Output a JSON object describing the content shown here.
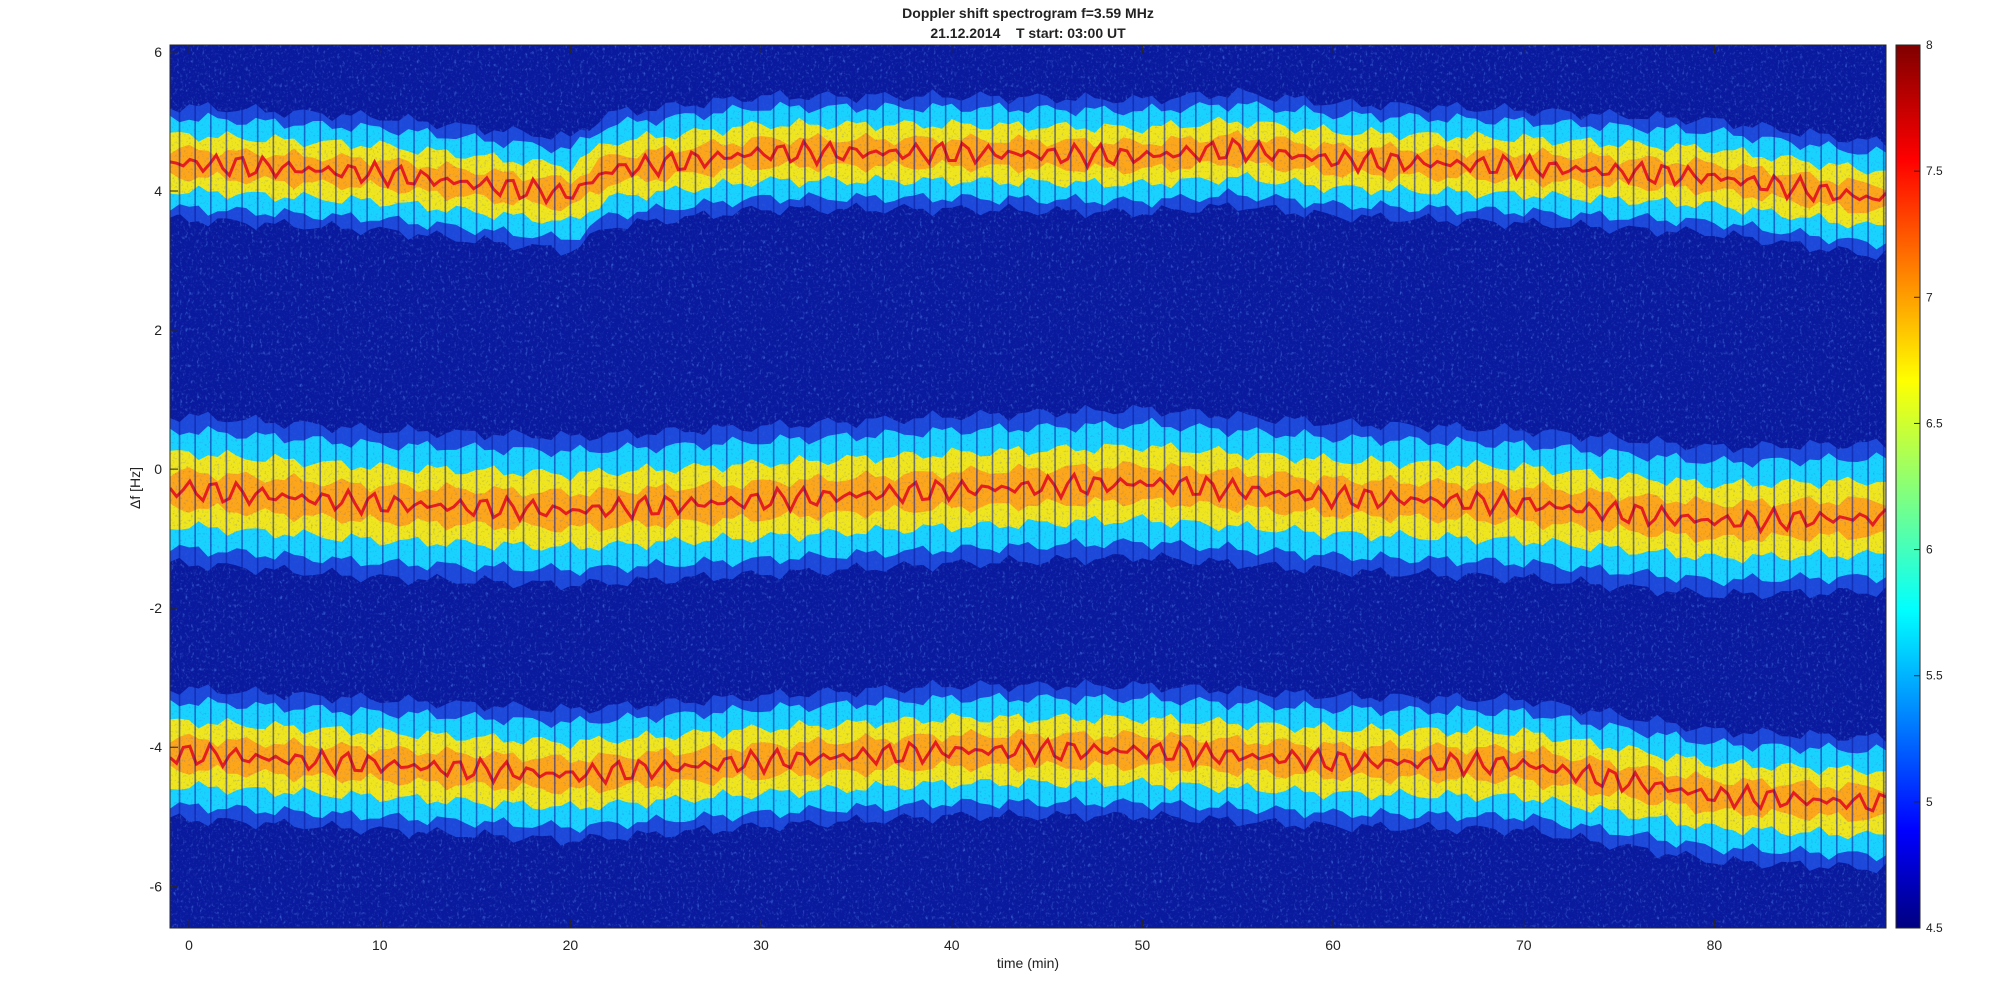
{
  "chart_data": {
    "type": "heatmap",
    "title": "Doppler shift spectrogram f=3.59 MHz",
    "subtitle": "21.12.2014    T start: 03:00 UT",
    "xlabel": "time (min)",
    "ylabel": "Δf [Hz]",
    "xlim": [
      -1,
      89
    ],
    "ylim": [
      -6.6,
      6.1
    ],
    "xticks": [
      "0",
      "10",
      "20",
      "30",
      "40",
      "50",
      "60",
      "70",
      "80"
    ],
    "yticks": [
      "-6",
      "-4",
      "-2",
      "0",
      "2",
      "4",
      "6"
    ],
    "colorbar": {
      "range": [
        4.5,
        8
      ],
      "ticks": [
        "4.5",
        "5",
        "5.5",
        "6",
        "6.5",
        "7",
        "7.5",
        "8"
      ],
      "colormap": "jet"
    },
    "colors": {
      "background": "#0a1a9e",
      "noise": "#1f4fe0",
      "edge": "#19d3ff",
      "mid": "#f0e61e",
      "peak": "#e81c1c",
      "trace_line": "#000000"
    },
    "series": [
      {
        "times": [
          0,
          10,
          20,
          22,
          30,
          40,
          50,
          55,
          60,
          70,
          80,
          88
        ],
        "center": [
          4.4,
          4.25,
          3.95,
          4.3,
          4.55,
          4.55,
          4.5,
          4.6,
          4.45,
          4.35,
          4.2,
          3.9
        ],
        "halfwidth": 0.65
      },
      {
        "times": [
          0,
          10,
          20,
          30,
          40,
          50,
          60,
          70,
          80,
          88
        ],
        "center": [
          -0.3,
          -0.5,
          -0.6,
          -0.45,
          -0.3,
          -0.2,
          -0.4,
          -0.5,
          -0.75,
          -0.7
        ],
        "halfwidth": 0.85
      },
      {
        "times": [
          0,
          10,
          20,
          30,
          40,
          50,
          60,
          70,
          80,
          88
        ],
        "center": [
          -4.1,
          -4.25,
          -4.4,
          -4.2,
          -4.05,
          -4.05,
          -4.2,
          -4.25,
          -4.7,
          -4.8
        ],
        "halfwidth": 0.75
      }
    ]
  }
}
